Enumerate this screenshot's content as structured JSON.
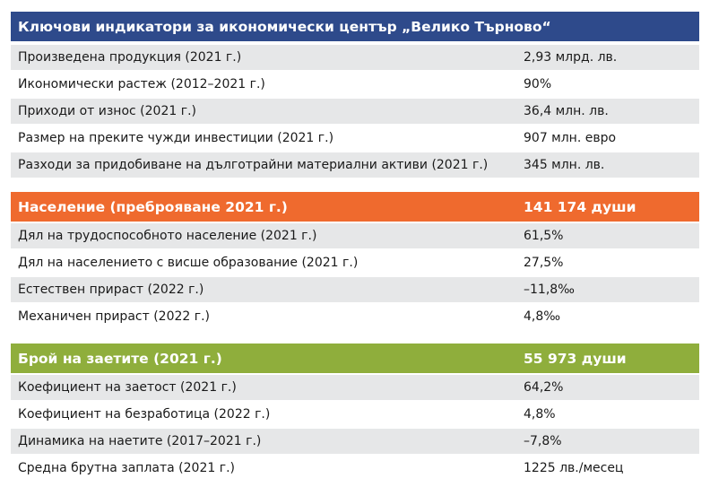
{
  "section1": {
    "title": "Ключови индикатори за икономически център „Велико Търново“",
    "rows": [
      {
        "label": "Произведена продукция (2021 г.)",
        "value": "2,93 млрд. лв."
      },
      {
        "label": "Икономически растеж (2012–2021 г.)",
        "value": "90%"
      },
      {
        "label": "Приходи от износ (2021 г.)",
        "value": "36,4 млн. лв."
      },
      {
        "label": "Размер на преките чужди инвестиции (2021 г.)",
        "value": "907 млн. евро"
      },
      {
        "label": "Разходи за придобиване на дълготрайни материални активи (2021 г.)",
        "value": "345 млн. лв."
      }
    ]
  },
  "section2": {
    "title": "Население (преброяване 2021 г.)",
    "value": "141 174 души",
    "rows": [
      {
        "label": "Дял на трудоспособното население (2021 г.)",
        "value": "61,5%"
      },
      {
        "label": "Дял на населението с висше образование (2021 г.)",
        "value": "27,5%"
      },
      {
        "label": "Естествен прираст (2022 г.)",
        "value": "–11,8‰"
      },
      {
        "label": "Механичен прираст (2022 г.)",
        "value": "4,8‰"
      }
    ]
  },
  "section3": {
    "title": "Брой на заетите (2021 г.)",
    "value": "55 973 души",
    "rows": [
      {
        "label": "Коефициент на заетост (2021 г.)",
        "value": "64,2%"
      },
      {
        "label": "Коефициент на безработица (2022 г.)",
        "value": "4,8%"
      },
      {
        "label": "Динамика на наетите (2017–2021 г.)",
        "value": "–7,8%"
      },
      {
        "label": "Средна брутна заплата (2021 г.)",
        "value": "1225 лв./месец"
      }
    ]
  },
  "colors": {
    "section1_header": "#2e4a8b",
    "section2_header": "#ef6a2e",
    "section3_header": "#8fae3c",
    "row_alt": "#e6e7e8"
  }
}
